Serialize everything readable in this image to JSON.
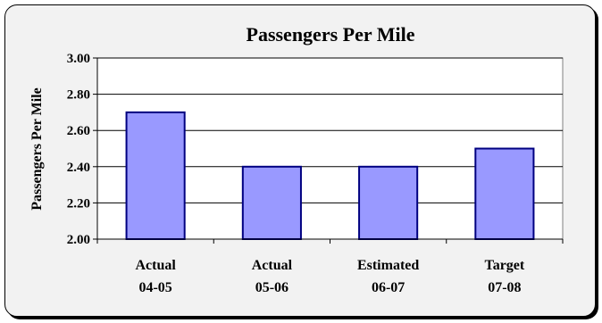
{
  "chart_data": {
    "type": "bar",
    "title": "Passengers Per Mile",
    "xlabel": "",
    "ylabel": "Passengers Per Mile",
    "categories": [
      [
        "Actual",
        "04-05"
      ],
      [
        "Actual",
        "05-06"
      ],
      [
        "Estimated",
        "06-07"
      ],
      [
        "Target",
        "07-08"
      ]
    ],
    "values": [
      2.7,
      2.4,
      2.4,
      2.5
    ],
    "ylim": [
      2.0,
      3.0
    ],
    "yticks": [
      "2.00",
      "2.20",
      "2.40",
      "2.60",
      "2.80",
      "3.00"
    ],
    "grid": true,
    "legend": "none",
    "colors": {
      "bar_fill": "#9999ff",
      "bar_stroke": "#000080",
      "plot_background": "#ffffff",
      "chart_background": "#f2f2f2"
    }
  }
}
